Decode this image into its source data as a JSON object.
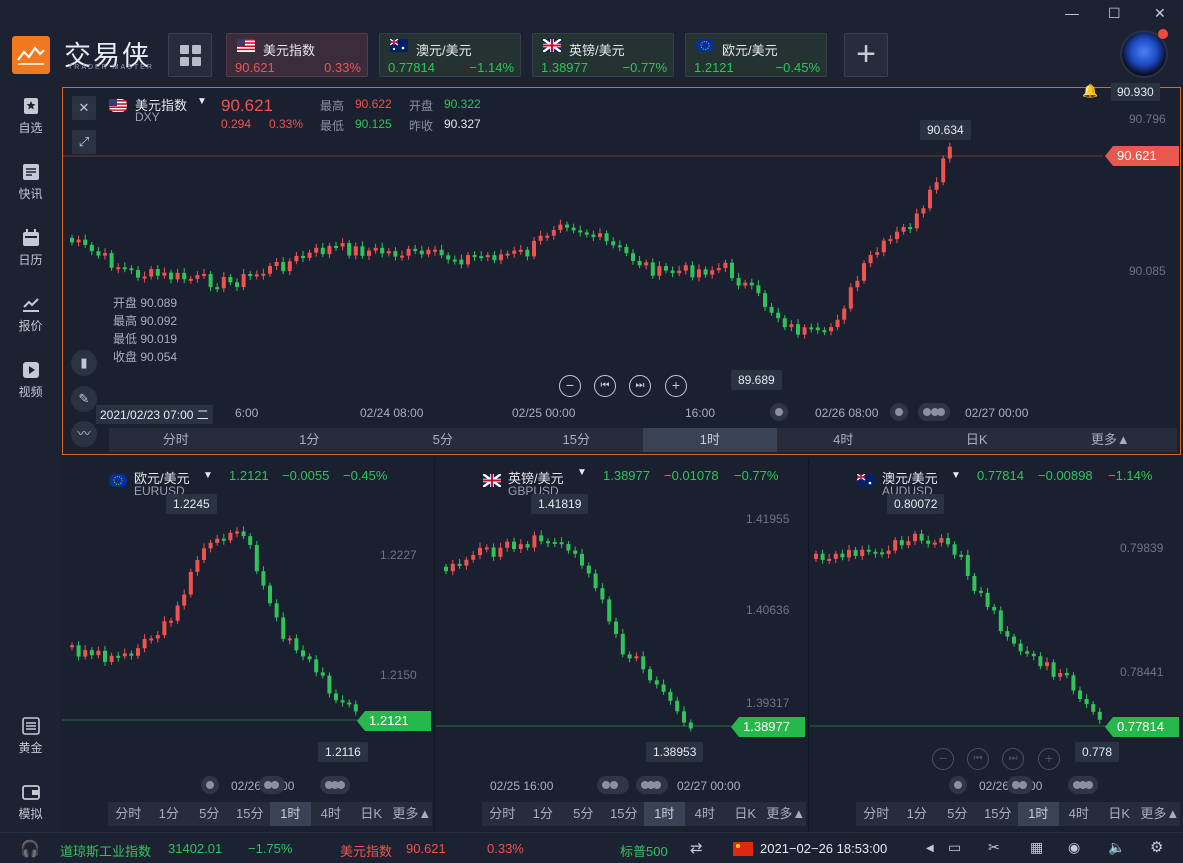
{
  "app": {
    "brand_cn": "交易侠",
    "brand_en": "TRADER MASTER"
  },
  "window": {
    "minimize": "—",
    "maximize": "☐",
    "close": "✕"
  },
  "tabs": [
    {
      "name": "美元指数",
      "price": "90.621",
      "change": "0.33%",
      "flag": "us",
      "active": true,
      "dir": "up"
    },
    {
      "name": "澳元/美元",
      "price": "0.77814",
      "change": "−1.14%",
      "flag": "au",
      "active": false,
      "dir": "down"
    },
    {
      "name": "英镑/美元",
      "price": "1.38977",
      "change": "−0.77%",
      "flag": "gb",
      "active": false,
      "dir": "down"
    },
    {
      "name": "欧元/美元",
      "price": "1.2121",
      "change": "−0.45%",
      "flag": "eu",
      "active": false,
      "dir": "down"
    }
  ],
  "plus_label": "+",
  "sidebar": [
    {
      "label": "自选",
      "icon": "bookmark-icon"
    },
    {
      "label": "快讯",
      "icon": "news-icon"
    },
    {
      "label": "日历",
      "icon": "calendar-icon"
    },
    {
      "label": "报价",
      "icon": "quote-chart-icon"
    },
    {
      "label": "视频",
      "icon": "video-icon"
    },
    {
      "label": "黄金",
      "icon": "gold-icon"
    },
    {
      "label": "模拟",
      "icon": "wallet-icon"
    }
  ],
  "main_chart": {
    "name": "美元指数",
    "code": "DXY",
    "price": "90.621",
    "chg": "0.294",
    "pct": "0.33%",
    "high_lbl": "最高",
    "high": "90.622",
    "open_lbl": "开盘",
    "open": "90.322",
    "low_lbl": "最低",
    "low": "90.125",
    "prev_lbl": "昨收",
    "prev": "90.327",
    "alert_value": "90.930",
    "y_ticks": [
      "90.796",
      "90.085"
    ],
    "price_tag": "90.621",
    "max_tip": "90.634",
    "min_tip": "89.689",
    "ohlc": [
      "开盘 90.089",
      "最高 90.092",
      "最低 90.019",
      "收盘 90.054"
    ],
    "time_labels": [
      "2021/02/23 07:00 二",
      "6:00",
      "02/24 08:00",
      "02/25 00:00",
      "16:00",
      "02/26 08:00",
      "02/27 00:00"
    ],
    "periods": [
      "分时",
      "1分",
      "5分",
      "15分",
      "1时",
      "4时",
      "日K",
      "更多▲"
    ],
    "selected_period": "1时"
  },
  "panels": [
    {
      "name": "欧元/美元",
      "code": "EURUSD",
      "price": "1.2121",
      "chg": "−0.0055",
      "pct": "−0.45%",
      "flag": "eu",
      "y_ticks": [
        "1.2227",
        "1.2150"
      ],
      "max_tip": "1.2245",
      "min_tip": "1.2116",
      "price_tag": "1.2121",
      "time_labels": [
        "02/26 08:00"
      ],
      "periods": [
        "分时",
        "1分",
        "5分",
        "15分",
        "1时",
        "4时",
        "日K",
        "更多▲"
      ],
      "selected": "1时"
    },
    {
      "name": "英镑/美元",
      "code": "GBPUSD",
      "price": "1.38977",
      "chg": "−0.01078",
      "pct": "−0.77%",
      "flag": "gb",
      "y_ticks": [
        "1.41955",
        "1.40636",
        "1.39317"
      ],
      "max_tip": "1.41819",
      "min_tip": "1.38953",
      "price_tag": "1.38977",
      "time_labels": [
        "02/25 16:00",
        "02/27 00:00"
      ],
      "periods": [
        "分时",
        "1分",
        "5分",
        "15分",
        "1时",
        "4时",
        "日K",
        "更多▲"
      ],
      "selected": "1时"
    },
    {
      "name": "澳元/美元",
      "code": "AUDUSD",
      "price": "0.77814",
      "chg": "−0.00898",
      "pct": "−1.14%",
      "flag": "au",
      "y_ticks": [
        "0.79839",
        "0.78441"
      ],
      "max_tip": "0.80072",
      "min_tip": "0.778",
      "price_tag": "0.77814",
      "time_labels": [
        "02/26 08:00"
      ],
      "periods": [
        "分时",
        "1分",
        "5分",
        "15分",
        "1时",
        "4时",
        "日K",
        "更多▲"
      ],
      "selected": "1时"
    }
  ],
  "status": {
    "dji_name": "道琼斯工业指数",
    "dji_value": "31402.01",
    "dji_pct": "−1.75%",
    "dxy_name": "美元指数",
    "dxy_value": "90.621",
    "dxy_pct": "0.33%",
    "sp_name": "标普500",
    "datetime": "2021−02−26 18:53:00"
  },
  "colors": {
    "up": "#f0534f",
    "down": "#2fc45a",
    "accent": "#f0781e"
  }
}
